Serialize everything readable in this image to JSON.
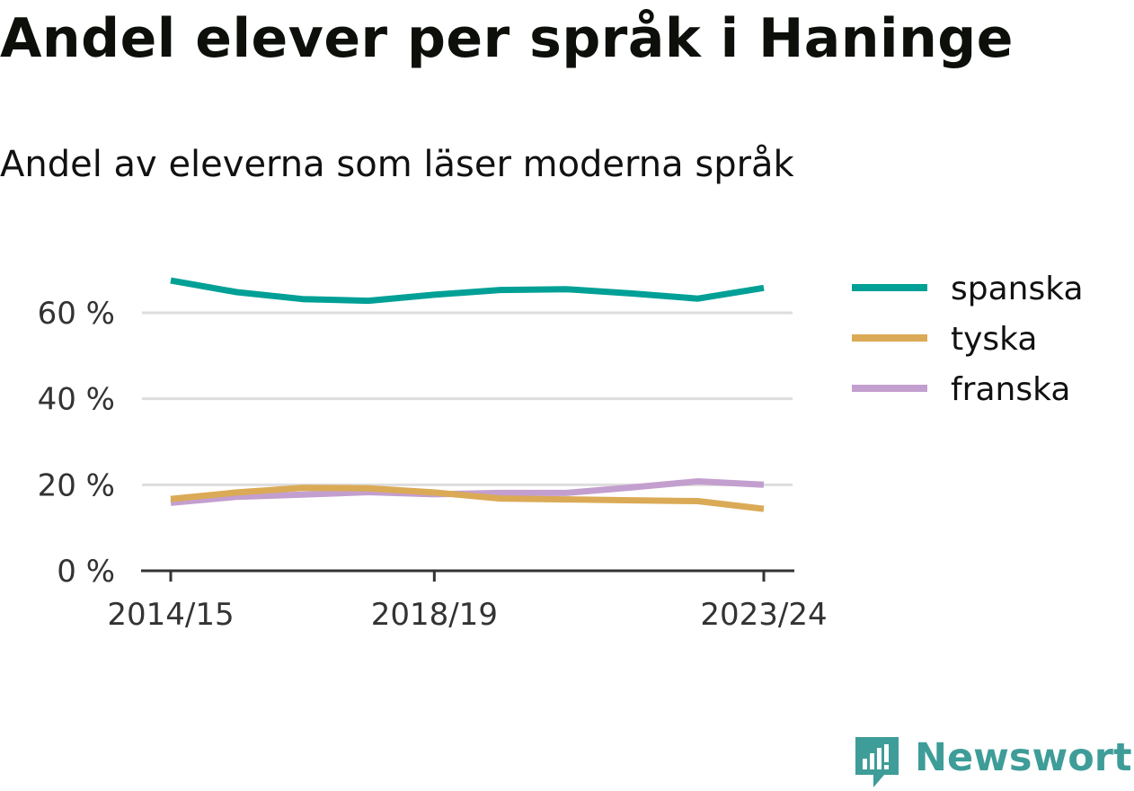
{
  "header": {
    "title": "Andel elever per språk i Haninge",
    "subtitle": "Andel av eleverna som läser moderna språk"
  },
  "brand": {
    "name": "Newsworthy",
    "icon": "newsworthy-logo-icon",
    "color": "#3e9d98"
  },
  "chart_data": {
    "type": "line",
    "x": [
      "2014/15",
      "2015/16",
      "2016/17",
      "2017/18",
      "2018/19",
      "2019/20",
      "2020/21",
      "2021/22",
      "2022/23",
      "2023/24"
    ],
    "x_tick_labels": [
      "2014/15",
      "2018/19",
      "2023/24"
    ],
    "y_ticks": [
      0,
      20,
      40,
      60
    ],
    "y_tick_labels": [
      "0 %",
      "20 %",
      "40 %",
      "60 %"
    ],
    "ylim": [
      0,
      70
    ],
    "grid": "horizontal",
    "legend_position": "right",
    "series": [
      {
        "name": "spanska",
        "color": "#00a096",
        "values": [
          67.5,
          64.8,
          63.2,
          62.8,
          64.2,
          65.3,
          65.5,
          64.5,
          63.3,
          65.8
        ]
      },
      {
        "name": "tyska",
        "color": "#dbaa56",
        "values": [
          16.7,
          18.2,
          19.3,
          19.2,
          18.2,
          16.8,
          16.6,
          16.4,
          16.2,
          14.4
        ]
      },
      {
        "name": "franska",
        "color": "#c39fcf",
        "values": [
          15.8,
          17.2,
          17.7,
          18.3,
          17.8,
          18.1,
          18.1,
          19.4,
          20.8,
          20.0
        ]
      }
    ]
  }
}
